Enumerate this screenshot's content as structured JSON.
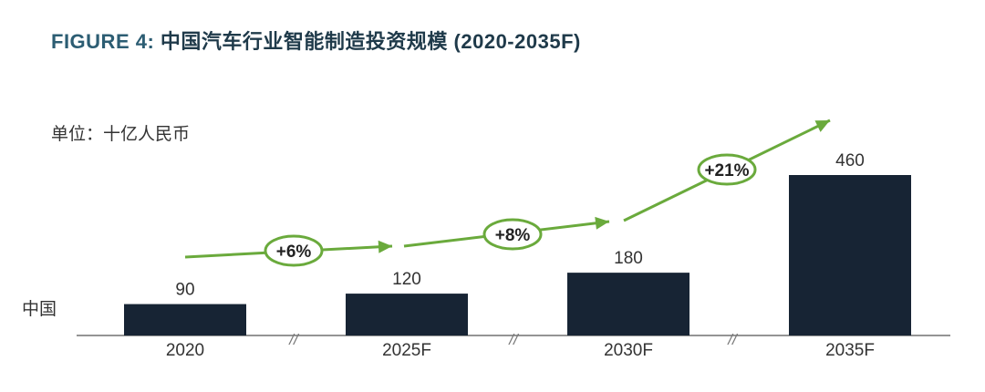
{
  "title": {
    "figure": "FIGURE 4:",
    "text": "中国汽车行业智能制造投资规模 (2020-2035F)"
  },
  "unit_label": "单位：十亿人民币",
  "row_label": "中国",
  "chart_data": {
    "type": "bar",
    "title": "中国汽车行业智能制造投资规模 (2020-2035F)",
    "ylabel": "单位：十亿人民币",
    "categories": [
      "2020",
      "2025F",
      "2030F",
      "2035F"
    ],
    "series": [
      {
        "name": "中国",
        "values": [
          90,
          120,
          180,
          460
        ]
      }
    ],
    "ylim": [
      0,
      460
    ],
    "growth": [
      "+6%",
      "+8%",
      "+21%"
    ],
    "axis_break_symbol": "//",
    "colors": {
      "bar": "#172434",
      "arrow": "#6aaa3c",
      "axis": "#555555"
    }
  }
}
